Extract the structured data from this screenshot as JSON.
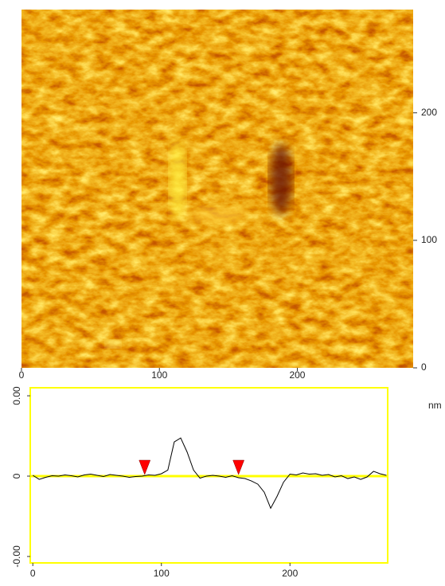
{
  "chart_data": [
    {
      "type": "image",
      "xlim": [
        0,
        284
      ],
      "ylim": [
        0,
        281
      ],
      "xticks": [
        0,
        100,
        200
      ],
      "yticks": [
        0,
        100,
        200
      ],
      "unit": "nm"
    },
    {
      "type": "line",
      "color": "#000000",
      "zero_color": "#ffff00",
      "frame_color": "#ffff00",
      "cursor_color": "#ff0000",
      "x": [
        0,
        5,
        10,
        15,
        20,
        25,
        30,
        35,
        40,
        45,
        50,
        55,
        60,
        65,
        70,
        75,
        80,
        85,
        90,
        95,
        100,
        105,
        110,
        115,
        120,
        125,
        130,
        135,
        140,
        145,
        150,
        155,
        160,
        165,
        170,
        175,
        180,
        185,
        190,
        195,
        200,
        205,
        210,
        215,
        220,
        225,
        230,
        235,
        240,
        245,
        250,
        255,
        260,
        265,
        270,
        275
      ],
      "values": [
        2e-05,
        -8e-05,
        -3e-05,
        1e-05,
        0,
        3e-05,
        1e-05,
        -2e-05,
        3e-05,
        5e-05,
        2e-05,
        -1e-05,
        4e-05,
        2e-05,
        0,
        -3e-05,
        -1e-05,
        0,
        3e-05,
        2e-05,
        6e-05,
        0.00015,
        0.00085,
        0.00095,
        0.0006,
        0.00015,
        -5e-05,
        0,
        2e-05,
        0,
        -3e-05,
        1e-05,
        -4e-05,
        -6e-05,
        -0.00012,
        -0.0002,
        -0.0004,
        -0.0008,
        -0.0005,
        -0.00015,
        5e-05,
        3e-05,
        8e-05,
        5e-05,
        6e-05,
        2e-05,
        4e-05,
        -2e-05,
        1e-05,
        -6e-05,
        -2e-05,
        -8e-05,
        -2e-05,
        0.00012,
        6e-05,
        2e-05
      ],
      "cursors": [
        87,
        160
      ],
      "xlim": [
        -2,
        276
      ],
      "ylim": [
        -0.00216,
        0.0022
      ],
      "xticks": [
        0,
        100,
        200
      ],
      "yticks": [
        {
          "value": 0.002,
          "label": "0.00"
        },
        0,
        {
          "value": -0.002,
          "label": "-0.00"
        }
      ]
    }
  ]
}
